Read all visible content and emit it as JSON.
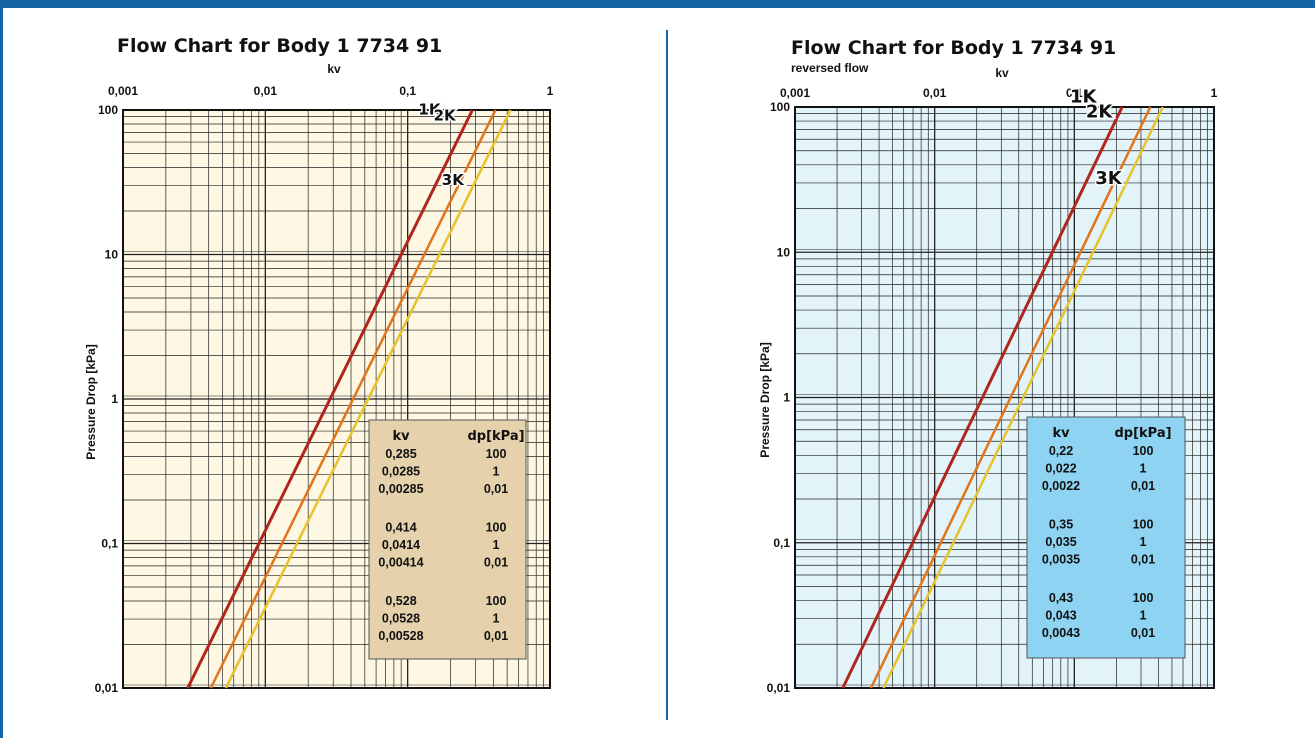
{
  "chart_data": [
    {
      "type": "line",
      "title": "Flow Chart for Body 1 7734 91",
      "subtitle": "",
      "xlabel": "kv",
      "ylabel": "Pressure Drop [kPa]",
      "xscale": "log",
      "yscale": "log",
      "xlim": [
        0.001,
        1
      ],
      "ylim": [
        0.01,
        100
      ],
      "xticks": [
        "0,001",
        "0,01",
        "0,1",
        "1"
      ],
      "yticks": [
        "0,01",
        "0,1",
        "1",
        "10",
        "100"
      ],
      "grid": true,
      "background": "#fdf7e3",
      "series": [
        {
          "name": "1K",
          "color": "#b0261c",
          "points": [
            [
              0.00285,
              0.01
            ],
            [
              0.0285,
              1
            ],
            [
              0.285,
              100
            ]
          ]
        },
        {
          "name": "2K",
          "color": "#e2741a",
          "points": [
            [
              0.00414,
              0.01
            ],
            [
              0.0414,
              1
            ],
            [
              0.414,
              100
            ]
          ]
        },
        {
          "name": "3K",
          "color": "#e6c22c",
          "points": [
            [
              0.00528,
              0.01
            ],
            [
              0.0528,
              1
            ],
            [
              0.528,
              100
            ]
          ]
        }
      ],
      "table": {
        "background": "#e5d2ac",
        "headers": [
          "kv",
          "dp[kPa]"
        ],
        "groups": [
          [
            [
              "0,285",
              "100"
            ],
            [
              "0,0285",
              "1"
            ],
            [
              "0,00285",
              "0,01"
            ]
          ],
          [
            [
              "0,414",
              "100"
            ],
            [
              "0,0414",
              "1"
            ],
            [
              "0,00414",
              "0,01"
            ]
          ],
          [
            [
              "0,528",
              "100"
            ],
            [
              "0,0528",
              "1"
            ],
            [
              "0,00528",
              "0,01"
            ]
          ]
        ]
      }
    },
    {
      "type": "line",
      "title": "Flow Chart for Body 1 7734 91",
      "subtitle": "reversed flow",
      "xlabel": "kv",
      "ylabel": "Pressure Drop [kPa]",
      "xscale": "log",
      "yscale": "log",
      "xlim": [
        0.001,
        1
      ],
      "ylim": [
        0.01,
        100
      ],
      "xticks": [
        "0,001",
        "0,01",
        "0,1",
        "1"
      ],
      "yticks": [
        "0,01",
        "0,1",
        "1",
        "10",
        "100"
      ],
      "grid": true,
      "background": "#e2f3fa",
      "series": [
        {
          "name": "1K",
          "color": "#b0261c",
          "points": [
            [
              0.0022,
              0.01
            ],
            [
              0.022,
              1
            ],
            [
              0.22,
              100
            ]
          ]
        },
        {
          "name": "2K",
          "color": "#e2741a",
          "points": [
            [
              0.0035,
              0.01
            ],
            [
              0.035,
              1
            ],
            [
              0.35,
              100
            ]
          ]
        },
        {
          "name": "3K",
          "color": "#e6c22c",
          "points": [
            [
              0.0043,
              0.01
            ],
            [
              0.043,
              1
            ],
            [
              0.43,
              100
            ]
          ]
        }
      ],
      "table": {
        "background": "#8fd3f2",
        "headers": [
          "kv",
          "dp[kPa]"
        ],
        "groups": [
          [
            [
              "0,22",
              "100"
            ],
            [
              "0,022",
              "1"
            ],
            [
              "0,0022",
              "0,01"
            ]
          ],
          [
            [
              "0,35",
              "100"
            ],
            [
              "0,035",
              "1"
            ],
            [
              "0,0035",
              "0,01"
            ]
          ],
          [
            [
              "0,43",
              "100"
            ],
            [
              "0,043",
              "1"
            ],
            [
              "0,0043",
              "0,01"
            ]
          ]
        ]
      }
    }
  ]
}
